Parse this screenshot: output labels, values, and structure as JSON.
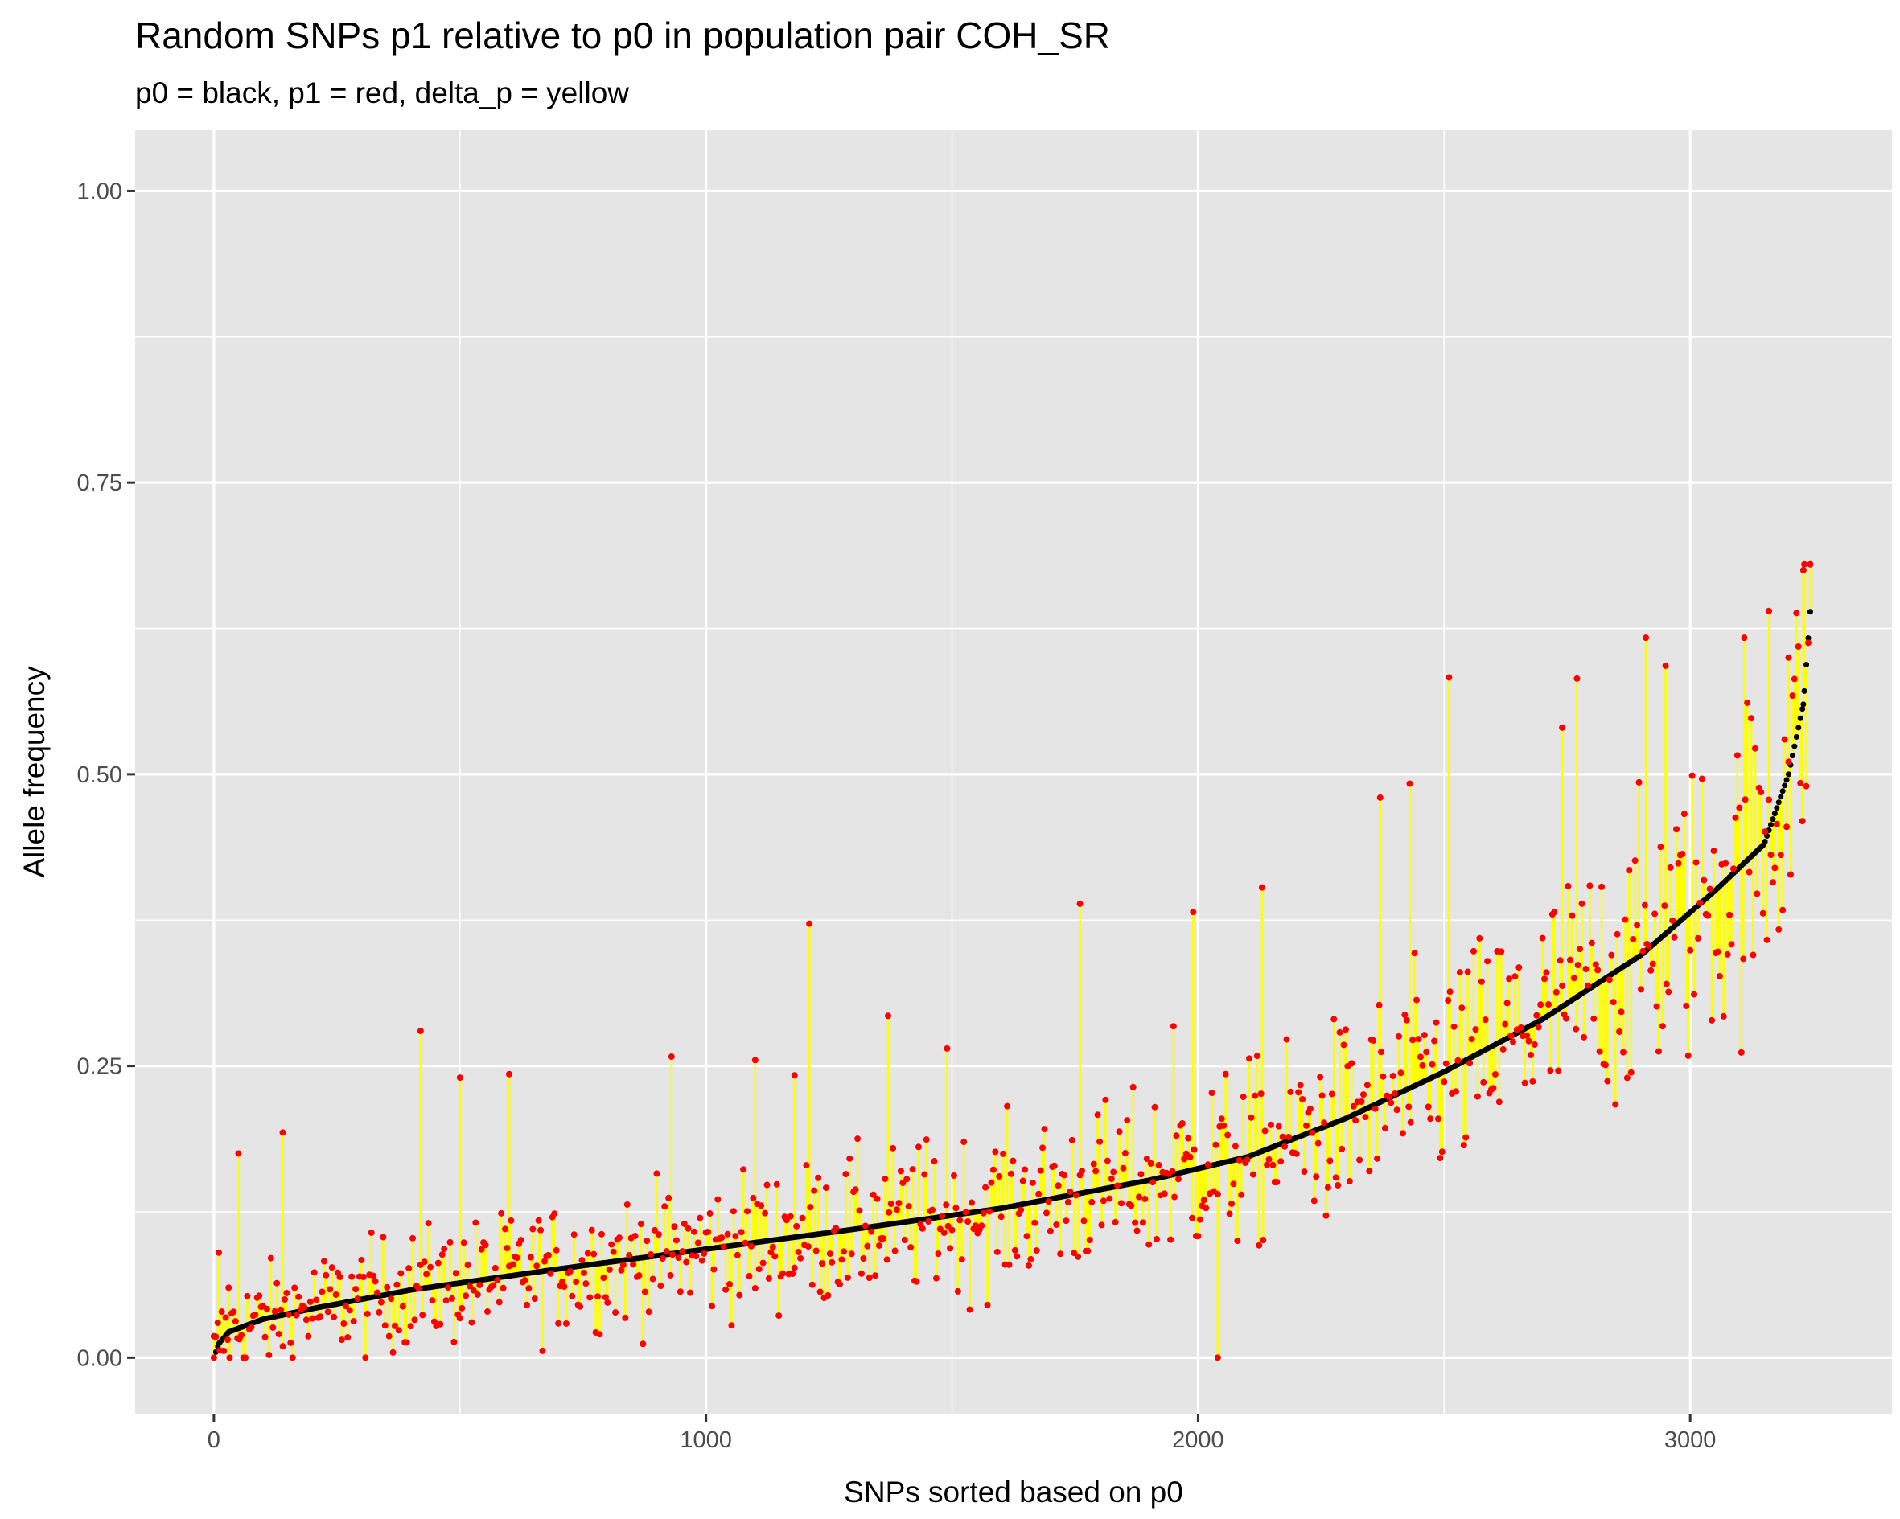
{
  "chart_data": {
    "type": "scatter",
    "title": "Random SNPs p1 relative to p0 in population pair COH_SR",
    "subtitle": "p0 = black, p1 = red, delta_p = yellow",
    "xlabel": "SNPs sorted based on p0",
    "ylabel": "Allele frequency",
    "xlim": [
      -160,
      3410
    ],
    "ylim": [
      -0.048,
      1.052
    ],
    "x_ticks": [
      0,
      1000,
      2000,
      3000
    ],
    "x_tick_labels": [
      "0",
      "1000",
      "2000",
      "3000"
    ],
    "y_ticks": [
      0,
      0.25,
      0.5,
      0.75,
      1
    ],
    "y_tick_labels": [
      "0.00",
      "0.25",
      "0.50",
      "0.75",
      "1.00"
    ],
    "grid": true,
    "legend": "none",
    "n_snps": 3245,
    "series": [
      {
        "name": "p0",
        "color": "#000000",
        "description": "sorted ascending; piecewise-linear approximation of the black curve",
        "x": [
          0,
          10,
          30,
          100,
          200,
          400,
          700,
          1000,
          1300,
          1600,
          1900,
          2100,
          2300,
          2500,
          2700,
          2900,
          3050,
          3150,
          3200,
          3230,
          3245
        ],
        "values": [
          0.0,
          0.012,
          0.022,
          0.033,
          0.042,
          0.058,
          0.076,
          0.093,
          0.11,
          0.128,
          0.152,
          0.172,
          0.205,
          0.245,
          0.29,
          0.345,
          0.4,
          0.44,
          0.5,
          0.56,
          0.645
        ]
      },
      {
        "name": "p1",
        "color": "#ff0000",
        "description": "p1 = p0 + noise; readable extreme points listed below",
        "x": [
          0,
          10,
          30,
          50,
          140,
          420,
          500,
          600,
          930,
          1100,
          1180,
          1210,
          1370,
          1490,
          1760,
          1950,
          1990,
          2040,
          2130,
          2370,
          2430,
          2510,
          2740,
          2770,
          2910,
          2950,
          3110,
          3160,
          3200,
          3230
        ],
        "values": [
          0.0,
          0.09,
          0.06,
          0.175,
          0.193,
          0.28,
          0.24,
          0.243,
          0.258,
          0.255,
          0.242,
          0.372,
          0.293,
          0.265,
          0.389,
          0.284,
          0.382,
          0.0,
          0.403,
          0.48,
          0.492,
          0.583,
          0.54,
          0.582,
          0.617,
          0.593,
          0.617,
          0.64,
          0.6,
          0.675
        ]
      },
      {
        "name": "delta_p",
        "color": "#ffff00",
        "description": "vertical segment from p0 to p1 for each SNP"
      }
    ]
  }
}
